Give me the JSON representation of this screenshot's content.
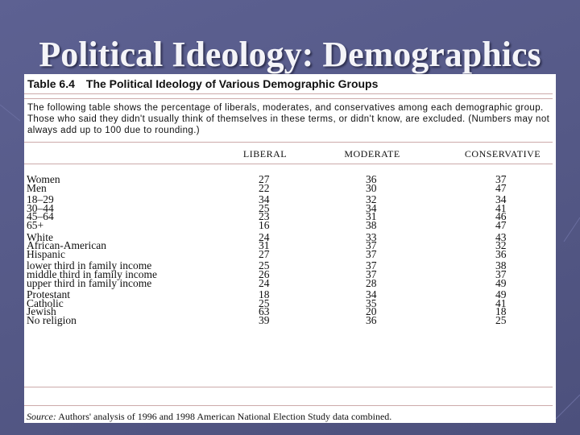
{
  "slide": {
    "title": "Political Ideology: Demographics"
  },
  "table": {
    "number": "Table 6.4",
    "caption": "The Political Ideology of Various Demographic Groups",
    "description": "The following table shows the percentage of liberals, moderates, and conservatives among each demographic group. Those who said they didn't usually think of themselves in these terms, or didn't know, are excluded. (Numbers may not always add up to 100 due to rounding.)",
    "columns": [
      "LIBERAL",
      "MODERATE",
      "CONSERVATIVE"
    ],
    "groups": [
      {
        "rows": [
          [
            "Women",
            27,
            36,
            37
          ],
          [
            "Men",
            22,
            30,
            47
          ]
        ]
      },
      {
        "rows": [
          [
            "18–29",
            34,
            32,
            34
          ],
          [
            "30–44",
            25,
            34,
            41
          ],
          [
            "45–64",
            23,
            31,
            46
          ],
          [
            "65+",
            16,
            38,
            47
          ]
        ]
      },
      {
        "rows": [
          [
            "White",
            24,
            33,
            43
          ],
          [
            "African-American",
            31,
            37,
            32
          ],
          [
            "Hispanic",
            27,
            37,
            36
          ]
        ]
      },
      {
        "rows": [
          [
            "lower third in family income",
            25,
            37,
            38
          ],
          [
            "middle third in family income",
            26,
            37,
            37
          ],
          [
            "upper third in family income",
            24,
            28,
            49
          ]
        ]
      },
      {
        "rows": [
          [
            "Protestant",
            18,
            34,
            49
          ],
          [
            "Catholic",
            25,
            35,
            41
          ],
          [
            "Jewish",
            63,
            20,
            18
          ],
          [
            "No religion",
            39,
            36,
            25
          ]
        ]
      }
    ],
    "source": {
      "label": "Source:",
      "text": "Authors' analysis of 1996 and 1998 American National Election Study data combined."
    }
  }
}
